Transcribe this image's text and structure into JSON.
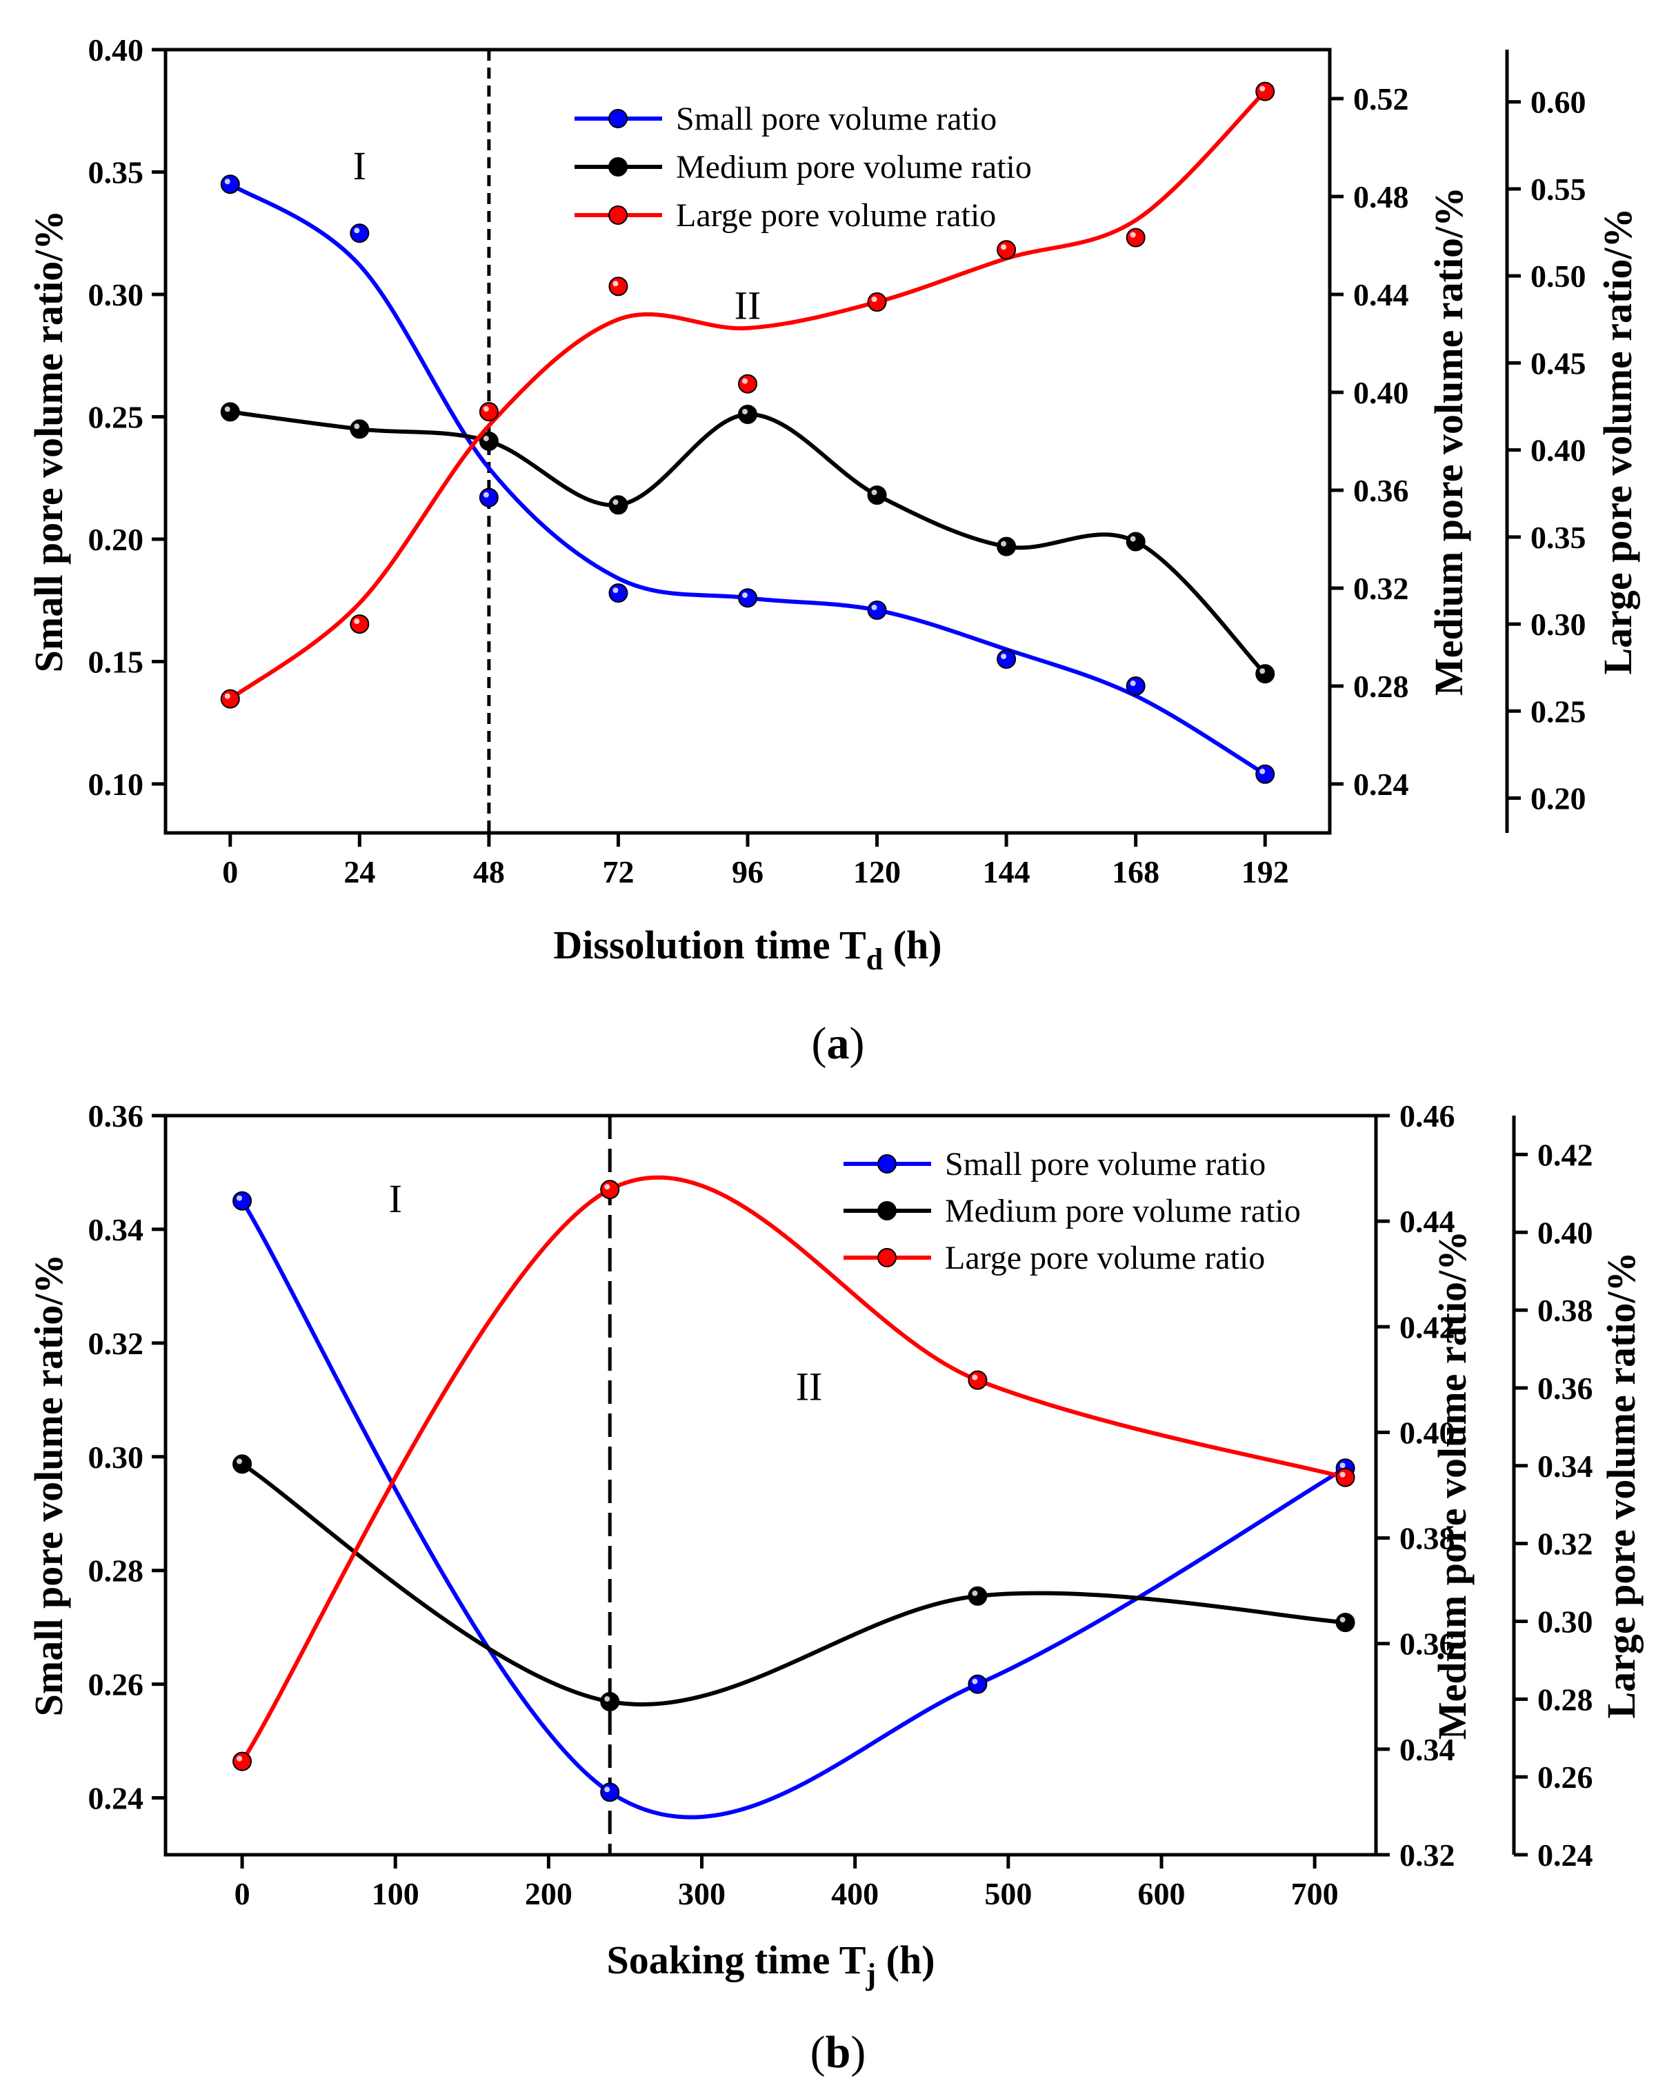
{
  "chart_data": [
    {
      "panel": "a",
      "caption_open": "(",
      "caption_letter": "a",
      "caption_close": ")",
      "type": "line",
      "xlabel": "Dissolution time T",
      "xlabel_sub": "d",
      "xlabel_unit": " (h)",
      "x": [
        0,
        24,
        48,
        72,
        96,
        120,
        144,
        168,
        192
      ],
      "xticks": [
        0,
        24,
        48,
        72,
        96,
        120,
        144,
        168,
        192
      ],
      "xlim": [
        -12,
        204
      ],
      "divider_x": 48,
      "regions": [
        {
          "label": "I",
          "x": 24,
          "y": 0.347
        },
        {
          "label": "II",
          "x": 96,
          "y": 0.29
        }
      ],
      "axes": [
        {
          "id": "small",
          "label": "Small pore volume ratio/%",
          "ylim": [
            0.08,
            0.4
          ],
          "ticks": [
            0.1,
            0.15,
            0.2,
            0.25,
            0.3,
            0.35,
            0.4
          ],
          "decimals": 2
        },
        {
          "id": "medium",
          "label": "Medium pore volume ratio/%",
          "ylim": [
            0.22,
            0.54
          ],
          "ticks": [
            0.24,
            0.28,
            0.32,
            0.36,
            0.4,
            0.44,
            0.48,
            0.52
          ],
          "decimals": 2
        },
        {
          "id": "large",
          "label": "Large pore volume ratio/%",
          "ylim": [
            0.18,
            0.63
          ],
          "ticks": [
            0.2,
            0.25,
            0.3,
            0.35,
            0.4,
            0.45,
            0.5,
            0.55,
            0.6
          ],
          "decimals": 2
        }
      ],
      "series": [
        {
          "name": "Small pore volume ratio",
          "axis": "small",
          "color": "#0000ff",
          "values": [
            0.345,
            0.325,
            0.217,
            0.178,
            0.176,
            0.171,
            0.151,
            0.14,
            0.104
          ],
          "curve": [
            0.345,
            0.312,
            0.229,
            0.184,
            0.176,
            0.171,
            0.155,
            0.136,
            0.104
          ]
        },
        {
          "name": "Medium pore volume ratio",
          "axis": "medium",
          "color": "#000000",
          "values": [
            0.392,
            0.385,
            0.38,
            0.354,
            0.391,
            0.358,
            0.337,
            0.339,
            0.285
          ],
          "curve": [
            0.392,
            0.385,
            0.38,
            0.354,
            0.391,
            0.358,
            0.337,
            0.339,
            0.285
          ]
        },
        {
          "name": "Large pore volume ratio",
          "axis": "large",
          "color": "#ff0000",
          "values": [
            0.257,
            0.3,
            0.422,
            0.494,
            0.438,
            0.485,
            0.515,
            0.522,
            0.606
          ],
          "curve": [
            0.257,
            0.312,
            0.414,
            0.475,
            0.47,
            0.485,
            0.51,
            0.532,
            0.606
          ]
        }
      ]
    },
    {
      "panel": "b",
      "caption_open": "(",
      "caption_letter": "b",
      "caption_close": ")",
      "type": "line",
      "xlabel": "Soaking time T",
      "xlabel_sub": "j",
      "xlabel_unit": " (h)",
      "x": [
        0,
        240,
        480,
        720
      ],
      "xticks": [
        0,
        100,
        200,
        300,
        400,
        500,
        600,
        700
      ],
      "xlim": [
        -50,
        740
      ],
      "divider_x": 240,
      "regions": [
        {
          "label": "I",
          "x": 100,
          "y": 0.343
        },
        {
          "label": "II",
          "x": 370,
          "y": 0.31
        }
      ],
      "axes": [
        {
          "id": "small",
          "label": "Small pore volume ratio/%",
          "ylim": [
            0.23,
            0.36
          ],
          "ticks": [
            0.24,
            0.26,
            0.28,
            0.3,
            0.32,
            0.34,
            0.36
          ],
          "decimals": 2
        },
        {
          "id": "medium",
          "label": "Medium pore volume ratio/%",
          "ylim": [
            0.32,
            0.46
          ],
          "ticks": [
            0.32,
            0.34,
            0.36,
            0.38,
            0.4,
            0.42,
            0.44,
            0.46
          ],
          "decimals": 2
        },
        {
          "id": "large",
          "label": "Large pore volume ratio/%",
          "ylim": [
            0.24,
            0.43
          ],
          "ticks": [
            0.24,
            0.26,
            0.28,
            0.3,
            0.32,
            0.34,
            0.36,
            0.38,
            0.4,
            0.42
          ],
          "decimals": 2
        }
      ],
      "series": [
        {
          "name": "Small pore volume ratio",
          "axis": "small",
          "color": "#0000ff",
          "values": [
            0.345,
            0.241,
            0.26,
            0.298
          ],
          "curve": [
            0.345,
            0.241,
            0.26,
            0.298
          ]
        },
        {
          "name": "Medium pore volume ratio",
          "axis": "medium",
          "color": "#000000",
          "values": [
            0.394,
            0.349,
            0.369,
            0.364
          ],
          "curve": [
            0.394,
            0.349,
            0.369,
            0.364
          ]
        },
        {
          "name": "Large pore volume ratio",
          "axis": "large",
          "color": "#ff0000",
          "values": [
            0.264,
            0.411,
            0.362,
            0.337
          ],
          "curve": [
            0.264,
            0.411,
            0.362,
            0.337
          ]
        }
      ]
    }
  ]
}
